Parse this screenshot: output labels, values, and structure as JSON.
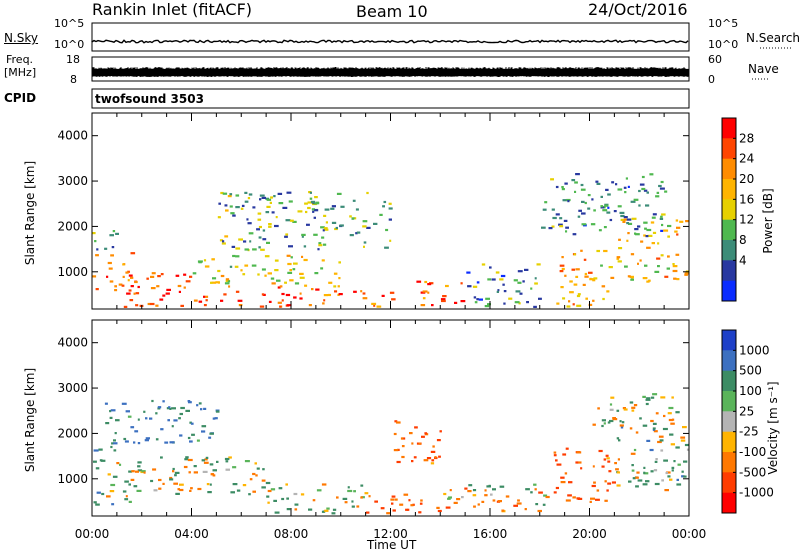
{
  "header": {
    "station": "Rankin Inlet (fitACF)",
    "beam": "Beam 10",
    "date": "24/Oct/2016"
  },
  "strips": {
    "nsky_label": "N.Sky",
    "nsky_ticks": [
      "10^5",
      "10^0"
    ],
    "nsearch_label": "N.Search",
    "nsearch_ticks": [
      "10^5",
      "10^0"
    ],
    "freq_label_1": "Freq.",
    "freq_label_2": "[MHz]",
    "freq_ticks": [
      "18",
      "8"
    ],
    "nave_label": "Nave",
    "nave_ticks": [
      "60",
      "0"
    ],
    "cpid_label": "CPID",
    "cpid_value": "twofsound 3503"
  },
  "chart_data": [
    {
      "type": "heatmap",
      "panel": "power",
      "ylabel": "Slant Range [km]",
      "xlabel": "",
      "xlim": [
        "00:00",
        "24:00"
      ],
      "ylim": [
        180,
        4500
      ],
      "yticks": [
        "1000",
        "2000",
        "3000",
        "4000"
      ],
      "colorbar": {
        "label": "Power [dB]",
        "ticks": [
          "28",
          "24",
          "20",
          "16",
          "12",
          "8",
          "4"
        ],
        "values": [
          28,
          24,
          20,
          16,
          12,
          8,
          4
        ],
        "colors": [
          "#ff0000",
          "#ff4500",
          "#ff8c00",
          "#ffb400",
          "#e6d000",
          "#4fb84f",
          "#3c8c78",
          "#2838a0",
          "#0a2cff"
        ]
      },
      "echo_regions": [
        {
          "t": [
            0.0,
            1.6
          ],
          "r": [
            600,
            1500
          ],
          "level": 24
        },
        {
          "t": [
            0.0,
            1.0
          ],
          "r": [
            1500,
            2000
          ],
          "level": 12
        },
        {
          "t": [
            1.0,
            4.0
          ],
          "r": [
            250,
            1000
          ],
          "level": 28
        },
        {
          "t": [
            4.0,
            9.0
          ],
          "r": [
            250,
            700
          ],
          "level": 28
        },
        {
          "t": [
            4.0,
            10.0
          ],
          "r": [
            700,
            1400
          ],
          "level": 16
        },
        {
          "t": [
            9.0,
            12.5
          ],
          "r": [
            250,
            600
          ],
          "level": 24
        },
        {
          "t": [
            13.0,
            15.0
          ],
          "r": [
            250,
            900
          ],
          "level": 26
        },
        {
          "t": [
            15.0,
            18.0
          ],
          "r": [
            250,
            1200
          ],
          "level": 8
        },
        {
          "t": [
            18.5,
            21.0
          ],
          "r": [
            250,
            1500
          ],
          "level": 20
        },
        {
          "t": [
            21.0,
            24.0
          ],
          "r": [
            800,
            2300
          ],
          "level": 18
        },
        {
          "t": [
            5.0,
            12.0
          ],
          "r": [
            1500,
            2800
          ],
          "level": 10
        },
        {
          "t": [
            18.0,
            23.0
          ],
          "r": [
            1800,
            3200
          ],
          "level": 8
        }
      ]
    },
    {
      "type": "heatmap",
      "panel": "velocity",
      "ylabel": "Slant Range [km]",
      "xlabel": "Time UT",
      "xlim": [
        "00:00",
        "24:00"
      ],
      "ylim": [
        180,
        4500
      ],
      "xticks": [
        "00:00",
        "04:00",
        "08:00",
        "12:00",
        "16:00",
        "20:00",
        "00:00"
      ],
      "yticks": [
        "1000",
        "2000",
        "3000",
        "4000"
      ],
      "colorbar": {
        "label": "Velocity [m s⁻¹]",
        "ticks": [
          "1000",
          "500",
          "100",
          "25",
          "-25",
          "-100",
          "-500",
          "-1000"
        ],
        "values": [
          1000,
          500,
          100,
          25,
          -25,
          -100,
          -500,
          -1000
        ],
        "colors": [
          "#1e40c8",
          "#3c70c0",
          "#3c8c64",
          "#5ab45a",
          "#b4b4b4",
          "#ffb400",
          "#ff7800",
          "#ff3c00",
          "#ff0000"
        ]
      },
      "echo_regions": [
        {
          "t": [
            0.0,
            1.5
          ],
          "r": [
            400,
            1800
          ],
          "level": 100
        },
        {
          "t": [
            1.5,
            7.0
          ],
          "r": [
            600,
            1500
          ],
          "level": 0
        },
        {
          "t": [
            0.5,
            5.0
          ],
          "r": [
            1800,
            2800
          ],
          "level": 300
        },
        {
          "t": [
            7.0,
            11.0
          ],
          "r": [
            250,
            900
          ],
          "level": 100
        },
        {
          "t": [
            11.0,
            14.0
          ],
          "r": [
            250,
            700
          ],
          "level": -300
        },
        {
          "t": [
            12.0,
            14.0
          ],
          "r": [
            1300,
            2300
          ],
          "level": -300
        },
        {
          "t": [
            14.0,
            18.5
          ],
          "r": [
            300,
            900
          ],
          "level": -100
        },
        {
          "t": [
            18.5,
            21.0
          ],
          "r": [
            500,
            1700
          ],
          "level": -300
        },
        {
          "t": [
            21.0,
            24.0
          ],
          "r": [
            700,
            2200
          ],
          "level": 100
        },
        {
          "t": [
            20.0,
            23.5
          ],
          "r": [
            2100,
            2900
          ],
          "level": 0
        }
      ]
    }
  ]
}
